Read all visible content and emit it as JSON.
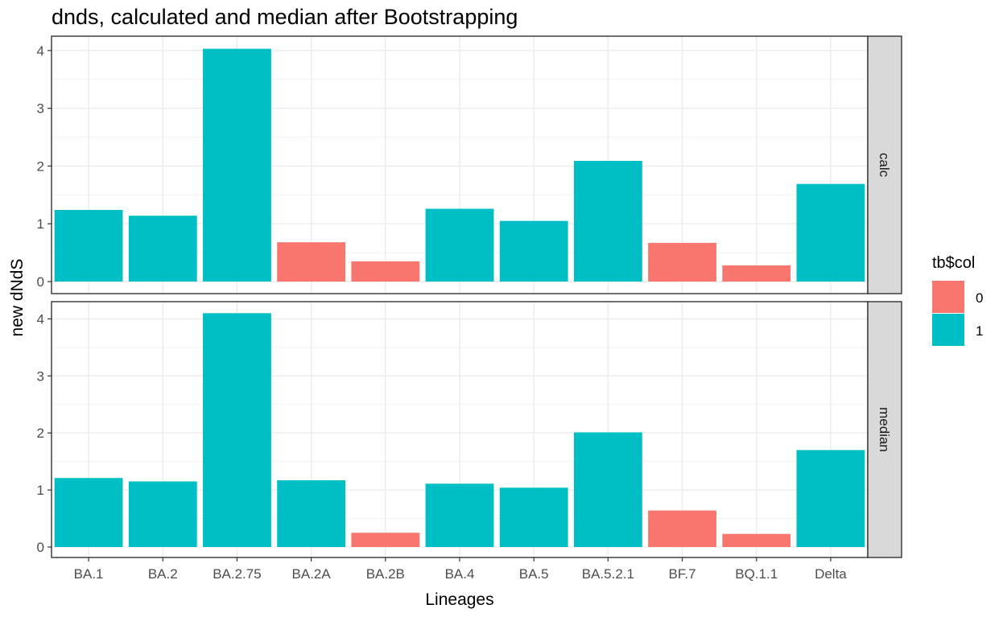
{
  "chart_data": {
    "type": "bar",
    "title": "dnds, calculated and median after Bootstrapping",
    "xlabel": "Lineages",
    "ylabel": "new dNdS",
    "categories": [
      "BA.1",
      "BA.2",
      "BA.2.75",
      "BA.2A",
      "BA.2B",
      "BA.4",
      "BA.5",
      "BA.5.2.1",
      "BF.7",
      "BQ.1.1",
      "Delta"
    ],
    "ylim": [
      0,
      4.2
    ],
    "yticks": [
      "0",
      "1",
      "2",
      "3",
      "4"
    ],
    "grid": true,
    "facets": [
      {
        "label": "calc",
        "values": [
          1.24,
          1.14,
          4.03,
          0.68,
          0.35,
          1.26,
          1.05,
          2.09,
          0.67,
          0.28,
          1.69
        ],
        "groups": [
          "1",
          "1",
          "1",
          "0",
          "0",
          "1",
          "1",
          "1",
          "0",
          "0",
          "1"
        ]
      },
      {
        "label": "median",
        "values": [
          1.21,
          1.15,
          4.1,
          1.17,
          0.25,
          1.11,
          1.04,
          2.01,
          0.64,
          0.23,
          1.7
        ],
        "groups": [
          "1",
          "1",
          "1",
          "1",
          "0",
          "1",
          "1",
          "1",
          "0",
          "0",
          "1"
        ]
      }
    ],
    "legend": {
      "title": "tb$col",
      "placement": "right",
      "entries": [
        {
          "label": "0",
          "color": "#F8766D"
        },
        {
          "label": "1",
          "color": "#00BFC4"
        }
      ]
    }
  }
}
